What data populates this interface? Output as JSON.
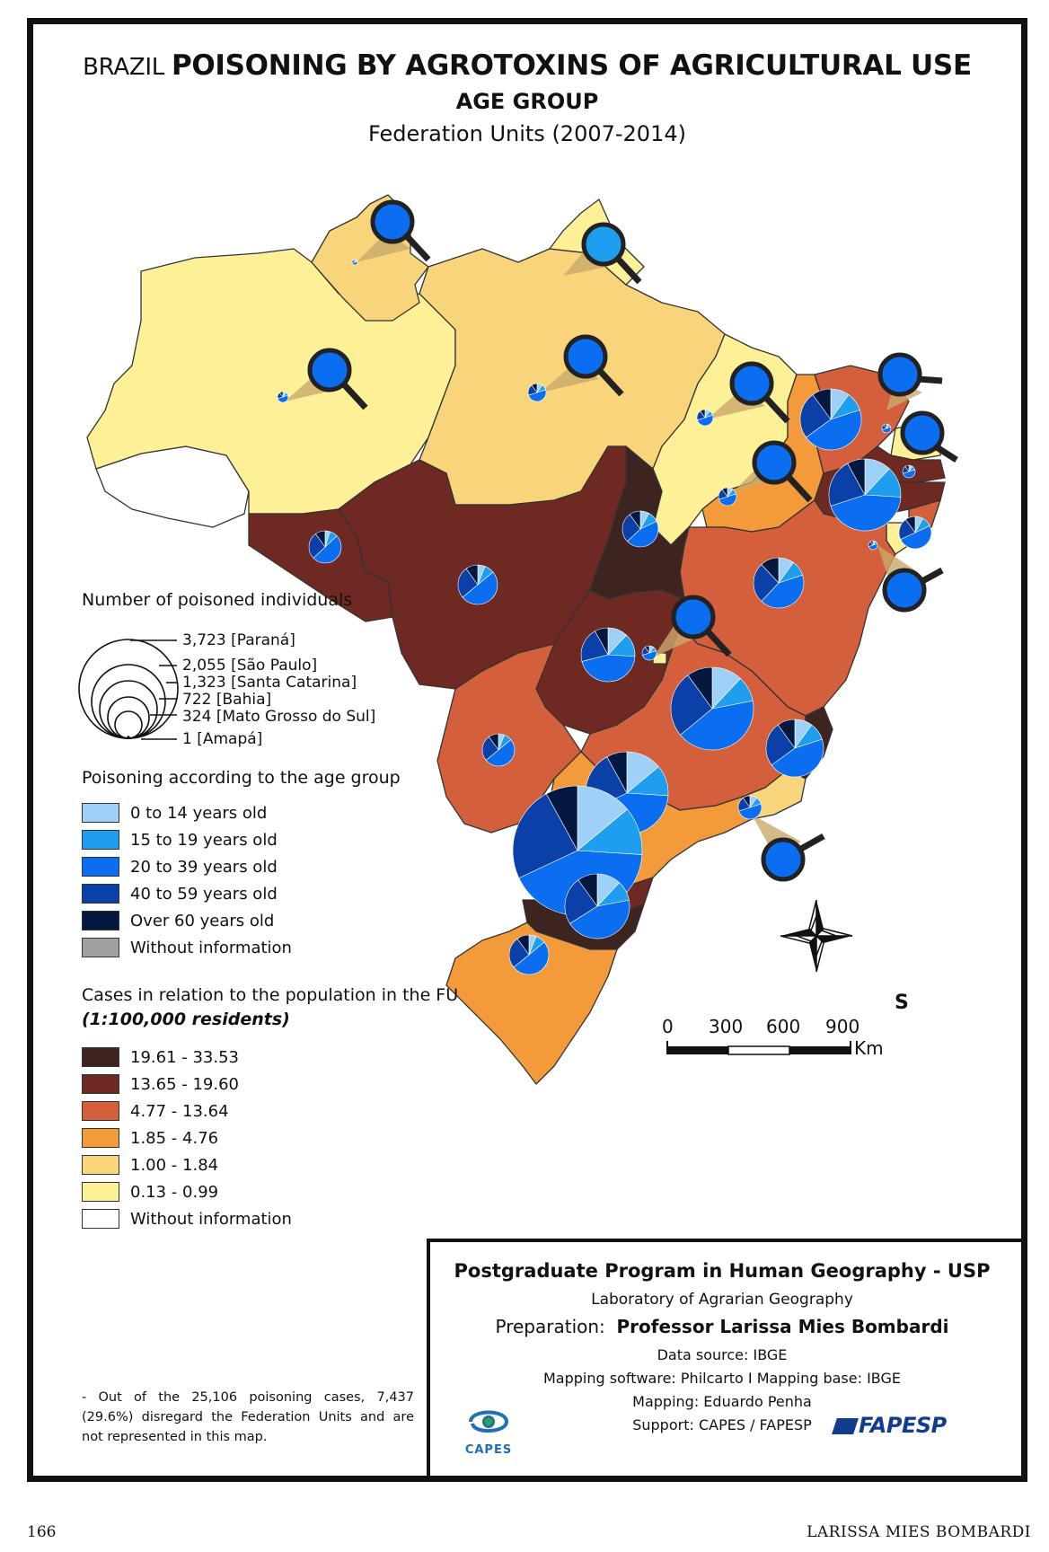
{
  "title": {
    "prefix": "BRAZIL",
    "main": "POISONING BY AGROTOXINS OF AGRICULTURAL USE",
    "subtitle": "AGE GROUP",
    "period": "Federation Units (2007-2014)"
  },
  "size_legend": {
    "heading": "Number of poisoned individuals",
    "items": [
      {
        "value": "3,723",
        "state": "[Paraná]"
      },
      {
        "value": "2,055",
        "state": "[São Paulo]"
      },
      {
        "value": "1,323",
        "state": "[Santa Catarina]"
      },
      {
        "value": "722",
        "state": "[Bahia]"
      },
      {
        "value": "324",
        "state": "[Mato Grosso do Sul]"
      },
      {
        "value": "1",
        "state": "[Amapá]"
      }
    ]
  },
  "age_legend": {
    "heading": "Poisoning according to the age group",
    "items": [
      {
        "label": "0 to 14 years old",
        "color": "#9fd0f7"
      },
      {
        "label": "15 to 19 years old",
        "color": "#1f9ef0"
      },
      {
        "label": "20 to 39 years old",
        "color": "#0b6df0"
      },
      {
        "label": "40 to 59 years old",
        "color": "#0b40a8"
      },
      {
        "label": "Over 60 years old",
        "color": "#03173f"
      },
      {
        "label": "Without information",
        "color": "#a0a0a0"
      }
    ]
  },
  "rate_legend": {
    "heading": "Cases in relation to the population in the FU",
    "sub": "(1:100,000 residents)",
    "items": [
      {
        "label": "19.61 - 33.53",
        "color": "#3e2420"
      },
      {
        "label": "13.65 - 19.60",
        "color": "#6e2a22"
      },
      {
        "label": "4.77 - 13.64",
        "color": "#d45f3c"
      },
      {
        "label": "1.85 - 4.76",
        "color": "#f39a3a"
      },
      {
        "label": "1.00 - 1.84",
        "color": "#f8d57a"
      },
      {
        "label": "0.13 - 0.99",
        "color": "#fdf096"
      },
      {
        "label": "Without information",
        "color": "#ffffff"
      }
    ]
  },
  "note": "- Out of the 25,106 poisoning cases, 7,437 (29.6%) disregard the Federation Units and are not represented in this map.",
  "scale": {
    "ticks": [
      "0",
      "300",
      "600",
      "900"
    ],
    "unit": "Km"
  },
  "compass": {
    "label": "S"
  },
  "credits": {
    "program": "Postgraduate Program in Human Geography - USP",
    "lab": "Laboratory of Agrarian Geography",
    "prep_label": "Preparation:",
    "prep_name": "Professor Larissa Mies Bombardi",
    "source": "Data source: IBGE",
    "software": "Mapping software: Philcarto I Mapping base: IBGE",
    "mapping": "Mapping: Eduardo Penha",
    "support": "Support: CAPES / FAPESP",
    "logo_capes": "CAPES",
    "logo_fapesp": "FAPESP"
  },
  "page": {
    "number": "166",
    "author": "LARISSA MIES BOMBARDI"
  }
}
